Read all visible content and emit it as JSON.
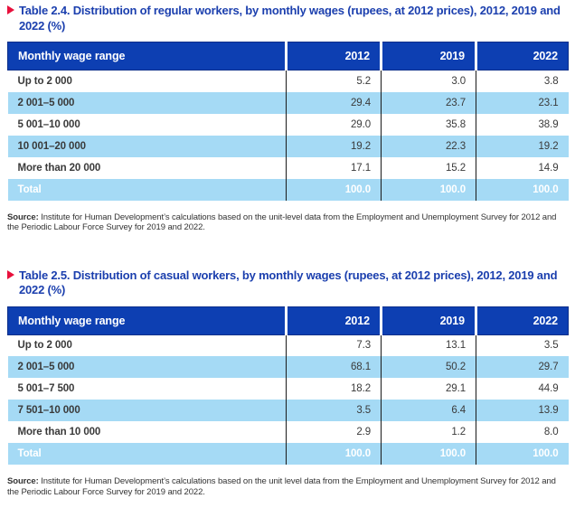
{
  "colors": {
    "title_blue": "#1b3fae",
    "arrow_red": "#e8103c",
    "header_blue": "#0d3fb2",
    "row_light_blue": "#a5daf5",
    "total_magenta": "#ae0a55",
    "text_dark": "#3a3a3a"
  },
  "tables": [
    {
      "title": "Table 2.4. Distribution of regular workers, by monthly wages (rupees, at 2012 prices), 2012, 2019 and 2022 (%)",
      "columns": [
        "Monthly wage range",
        "2012",
        "2019",
        "2022"
      ],
      "rows": [
        {
          "label": "Up to 2 000",
          "values": [
            "5.2",
            "3.0",
            "3.8"
          ]
        },
        {
          "label": "2 001–5 000",
          "values": [
            "29.4",
            "23.7",
            "23.1"
          ]
        },
        {
          "label": "5 001–10 000",
          "values": [
            "29.0",
            "35.8",
            "38.9"
          ]
        },
        {
          "label": "10 001–20 000",
          "values": [
            "19.2",
            "22.3",
            "19.2"
          ]
        },
        {
          "label": "More than 20 000",
          "values": [
            "17.1",
            "15.2",
            "14.9"
          ]
        }
      ],
      "total": {
        "label": "Total",
        "values": [
          "100.0",
          "100.0",
          "100.0"
        ]
      },
      "source_label": "Source:",
      "source_text": " Institute for Human Development’s calculations based on the unit-level data from the Employment and Unemployment Survey for 2012 and the Periodic Labour Force Survey for 2019 and 2022."
    },
    {
      "title": "Table 2.5. Distribution of casual workers, by monthly wages (rupees, at 2012 prices), 2012, 2019 and 2022 (%)",
      "columns": [
        "Monthly wage range",
        "2012",
        "2019",
        "2022"
      ],
      "rows": [
        {
          "label": "Up to 2 000",
          "values": [
            "7.3",
            "13.1",
            "3.5"
          ]
        },
        {
          "label": "2 001–5 000",
          "values": [
            "68.1",
            "50.2",
            "29.7"
          ]
        },
        {
          "label": "5 001–7 500",
          "values": [
            "18.2",
            "29.1",
            "44.9"
          ]
        },
        {
          "label": "7 501–10 000",
          "values": [
            "3.5",
            "6.4",
            "13.9"
          ]
        },
        {
          "label": "More than 10 000",
          "values": [
            "2.9",
            "1.2",
            "8.0"
          ]
        }
      ],
      "total": {
        "label": "Total",
        "values": [
          "100.0",
          "100.0",
          "100.0"
        ]
      },
      "source_label": "Source:",
      "source_text": " Institute for Human Development’s calculations based on the unit level data from the Employment and Unemployment Survey for 2012 and the Periodic Labour Force Survey for 2019 and 2022."
    }
  ]
}
